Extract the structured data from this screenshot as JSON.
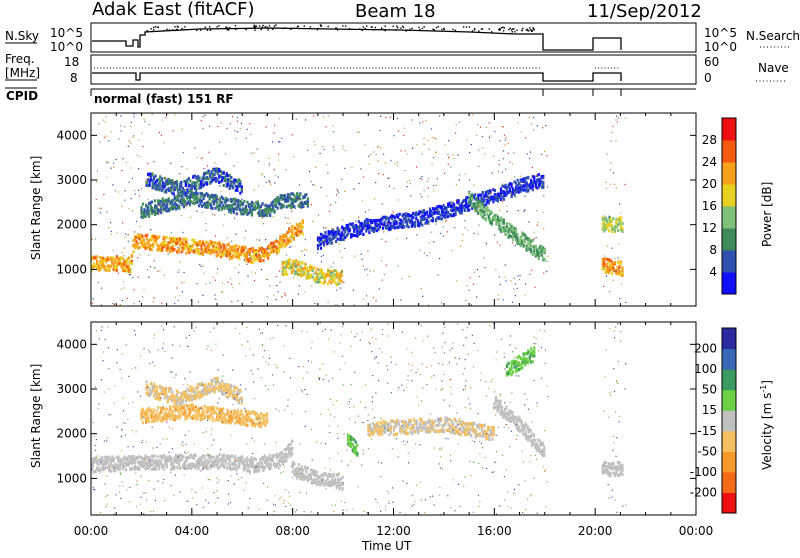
{
  "header": {
    "station": "Adak East (fitACF)",
    "beam": "Beam 18",
    "date": "11/Sep/2012"
  },
  "panel_labels": {
    "nsky": "N.Sky",
    "nsearch": "N.Search",
    "freq_line1": "Freq.",
    "freq_line2": "[MHz]",
    "nave": "Nave",
    "cpid": "CPID",
    "cpid_value": "normal (fast) 151 RF"
  },
  "aux_ticks": {
    "nsky_left": [
      "10^5",
      "10^0"
    ],
    "nsky_right": [
      "10^5",
      "10^0"
    ],
    "freq_left": [
      "18",
      "8"
    ],
    "nave_right": [
      "60",
      "0"
    ]
  },
  "colors": {
    "power_scale": [
      "#1010ff",
      "#3050b0",
      "#3f8a5a",
      "#7fc07a",
      "#e8d020",
      "#f7a01a",
      "#f55a10",
      "#ee1010"
    ],
    "velocity_scale": [
      "#ee1010",
      "#f56a18",
      "#f59a2a",
      "#f4c060",
      "#c0c0c0",
      "#6cd046",
      "#3a9a60",
      "#3a68b8",
      "#2a2aa0"
    ],
    "power_noise": [
      "#2c3f9e",
      "#3b5fb8",
      "#5e9a70",
      "#a8b24a",
      "#e28a24",
      "#d83820"
    ],
    "velocity_noise": [
      "#d88a3a",
      "#c8a84e",
      "#a0a0a0",
      "#7a4fa0",
      "#5ab040",
      "#3a5aa8"
    ]
  },
  "chart_data": [
    {
      "type": "heatmap",
      "name": "power",
      "ylabel": "Slant Range [km]",
      "xlabel": "",
      "x_ticks": [
        "00:00",
        "04:00",
        "08:00",
        "12:00",
        "16:00",
        "20:00",
        "00:00"
      ],
      "y_ticks": [
        1000,
        2000,
        3000,
        4000
      ],
      "xlim_hours": [
        0,
        24
      ],
      "ylim_km": [
        180,
        4500
      ],
      "colorbar": {
        "label": "Power [dB]",
        "tick_values": [
          4,
          8,
          12,
          16,
          20,
          24,
          28
        ],
        "range": [
          0,
          32
        ]
      },
      "data_gaps_hours": [
        [
          18.1,
          20.3
        ],
        [
          21.2,
          24
        ]
      ],
      "features": [
        {
          "points": [
            [
              0,
              1120
            ],
            [
              1,
              1130
            ],
            [
              1.6,
              1100
            ],
            [
              1.7,
              1640
            ],
            [
              3,
              1560
            ],
            [
              5,
              1460
            ],
            [
              6.5,
              1300
            ],
            [
              7,
              1380
            ],
            [
              7.5,
              1560
            ],
            [
              8,
              1820
            ],
            [
              8.4,
              1950
            ]
          ],
          "value": 22
        },
        {
          "points": [
            [
              7.6,
              1000
            ],
            [
              8,
              1080
            ],
            [
              9,
              860
            ],
            [
              10,
              800
            ]
          ],
          "value": 18
        },
        {
          "points": [
            [
              2,
              2300
            ],
            [
              4,
              2600
            ],
            [
              6,
              2380
            ],
            [
              7,
              2330
            ],
            [
              7.6,
              2520
            ],
            [
              8.6,
              2560
            ]
          ],
          "value": 8
        },
        {
          "points": [
            [
              2.2,
              3000
            ],
            [
              3.5,
              2800
            ],
            [
              5,
              3120
            ],
            [
              6,
              2800
            ]
          ],
          "value": 6
        },
        {
          "points": [
            [
              9,
              1600
            ],
            [
              10,
              1820
            ],
            [
              11.2,
              2000
            ],
            [
              13,
              2130
            ],
            [
              14.5,
              2380
            ],
            [
              16,
              2650
            ],
            [
              17,
              2850
            ],
            [
              18,
              3000
            ]
          ],
          "value": 4
        },
        {
          "points": [
            [
              15,
              2580
            ],
            [
              16,
              2100
            ],
            [
              17,
              1700
            ],
            [
              18,
              1300
            ]
          ],
          "value": 12
        },
        {
          "points": [
            [
              20.3,
              1100
            ],
            [
              21.1,
              1000
            ]
          ],
          "value": 22
        },
        {
          "points": [
            [
              20.3,
              2000
            ],
            [
              21.1,
              2000
            ]
          ],
          "value": 16
        }
      ]
    },
    {
      "type": "heatmap",
      "name": "velocity",
      "ylabel": "Slant Range [km]",
      "xlabel": "Time UT",
      "x_ticks": [
        "00:00",
        "04:00",
        "08:00",
        "12:00",
        "16:00",
        "20:00",
        "00:00"
      ],
      "y_ticks": [
        1000,
        2000,
        3000,
        4000
      ],
      "xlim_hours": [
        0,
        24
      ],
      "ylim_km": [
        180,
        4500
      ],
      "colorbar": {
        "label": "Velocity [m s",
        "label_exp": "-1",
        "label_end": "]",
        "tick_labels": [
          "200",
          "100",
          "50",
          "15",
          "-15",
          "-50",
          "-100",
          "-200"
        ]
      },
      "data_gaps_hours": [
        [
          18.1,
          20.3
        ],
        [
          21.2,
          24
        ]
      ],
      "features": [
        {
          "points": [
            [
              0,
              1300
            ],
            [
              2,
              1350
            ],
            [
              5,
              1380
            ],
            [
              6.5,
              1300
            ],
            [
              7.5,
              1400
            ],
            [
              8,
              1700
            ]
          ],
          "value": 0
        },
        {
          "points": [
            [
              2,
              2400
            ],
            [
              4,
              2500
            ],
            [
              6,
              2350
            ],
            [
              7,
              2300
            ]
          ],
          "value": -40
        },
        {
          "points": [
            [
              2.2,
              3000
            ],
            [
              3.5,
              2800
            ],
            [
              5,
              3100
            ],
            [
              6,
              2800
            ]
          ],
          "value": -20
        },
        {
          "points": [
            [
              8,
              1200
            ],
            [
              9,
              1000
            ],
            [
              10,
              900
            ]
          ],
          "value": 0
        },
        {
          "points": [
            [
              10.2,
              1900
            ],
            [
              10.6,
              1600
            ]
          ],
          "value": 40
        },
        {
          "points": [
            [
              11,
              2100
            ],
            [
              14,
              2200
            ],
            [
              16,
              2000
            ]
          ],
          "value": -15
        },
        {
          "points": [
            [
              16,
              2700
            ],
            [
              17,
              2200
            ],
            [
              18,
              1600
            ]
          ],
          "value": 0
        },
        {
          "points": [
            [
              16.5,
              3400
            ],
            [
              17.6,
              3800
            ]
          ],
          "value": 40
        },
        {
          "points": [
            [
              20.3,
              1200
            ],
            [
              21.1,
              1200
            ]
          ],
          "value": 0
        }
      ]
    }
  ]
}
